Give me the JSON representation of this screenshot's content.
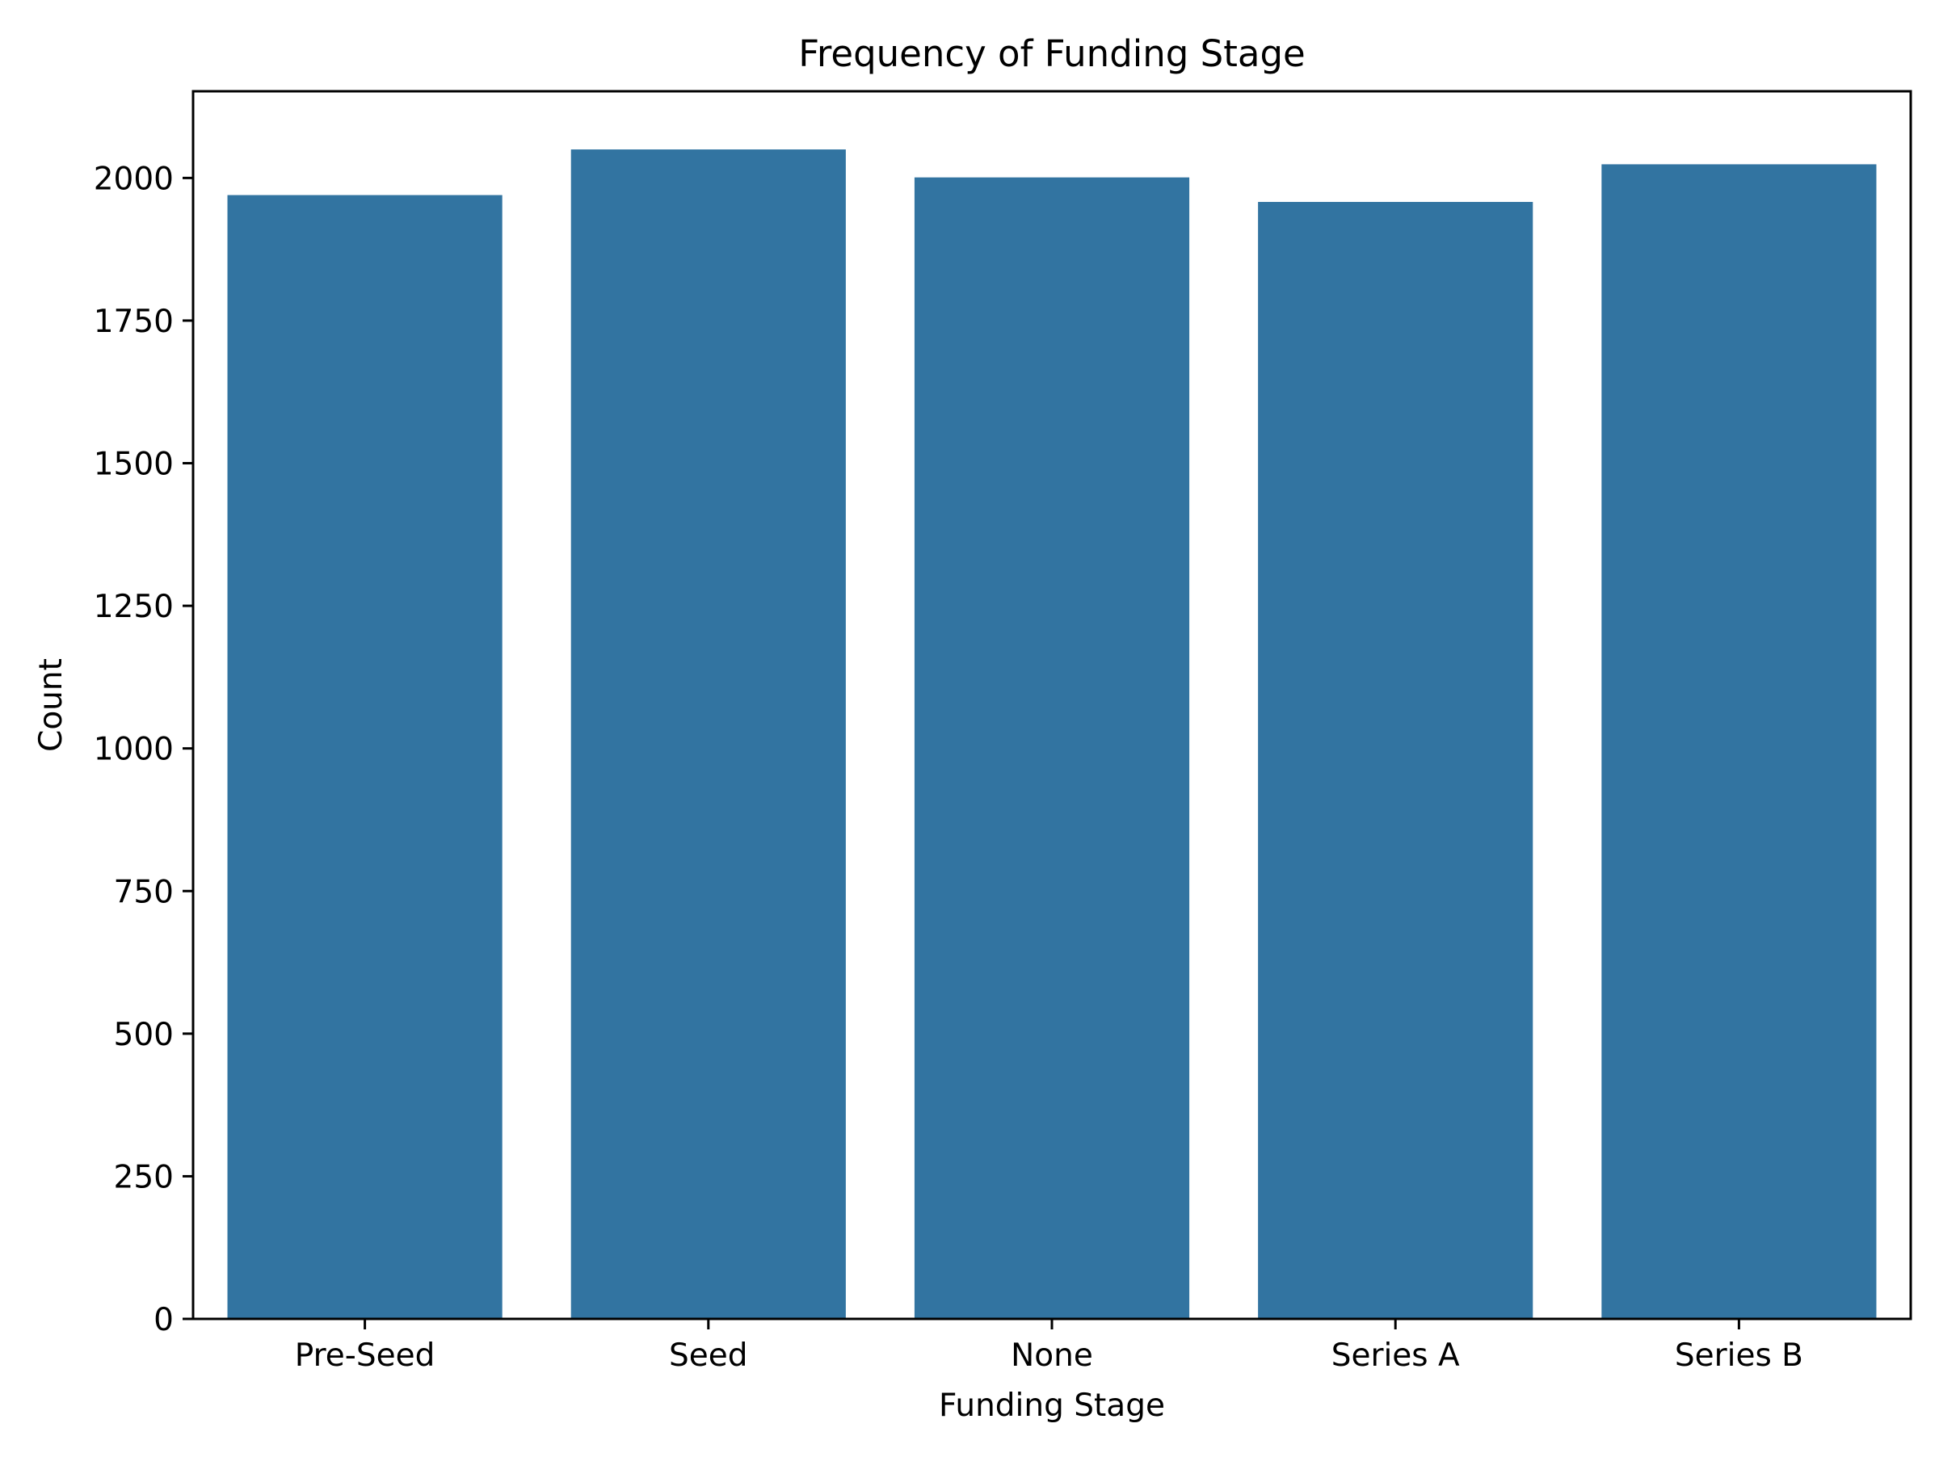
{
  "colors": {
    "bar": "#3274a1",
    "axis": "#000000",
    "background": "#ffffff"
  },
  "chart_data": {
    "type": "bar",
    "title": "Frequency of Funding Stage",
    "xlabel": "Funding Stage",
    "ylabel": "Count",
    "categories": [
      "Pre-Seed",
      "Seed",
      "None",
      "Series A",
      "Series B"
    ],
    "values": [
      1970,
      2050,
      2001,
      1958,
      2024
    ],
    "ylim": [
      0,
      2152
    ],
    "yticks": [
      0,
      250,
      500,
      750,
      1000,
      1250,
      1500,
      1750,
      2000
    ],
    "grid": false,
    "legend": "none"
  }
}
